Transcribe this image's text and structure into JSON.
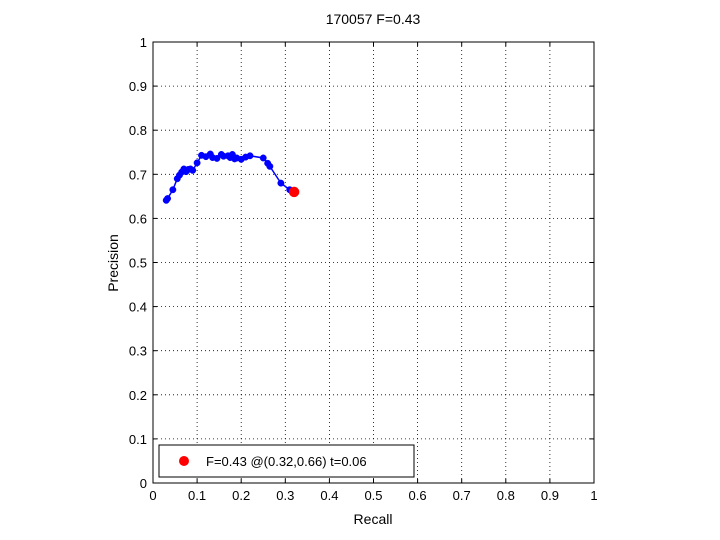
{
  "chart_data": {
    "type": "scatter",
    "title": "170057 F=0.43",
    "xlabel": "Recall",
    "ylabel": "Precision",
    "xlim": [
      0,
      1
    ],
    "ylim": [
      0,
      1
    ],
    "x_ticks": [
      "0",
      "0.1",
      "0.2",
      "0.3",
      "0.4",
      "0.5",
      "0.6",
      "0.7",
      "0.8",
      "0.9",
      "1"
    ],
    "y_ticks": [
      "0",
      "0.1",
      "0.2",
      "0.3",
      "0.4",
      "0.5",
      "0.6",
      "0.7",
      "0.8",
      "0.9",
      "1"
    ],
    "grid": true,
    "legend_position": "bottom-left",
    "series": [
      {
        "color": "#0000ff",
        "line": true,
        "marker": "dot",
        "x": [
          0.03,
          0.033,
          0.045,
          0.055,
          0.06,
          0.065,
          0.07,
          0.075,
          0.08,
          0.085,
          0.09,
          0.1,
          0.11,
          0.12,
          0.13,
          0.135,
          0.145,
          0.155,
          0.16,
          0.17,
          0.175,
          0.18,
          0.185,
          0.19,
          0.2,
          0.21,
          0.22,
          0.25,
          0.26,
          0.265,
          0.29,
          0.31
        ],
        "y": [
          0.641,
          0.645,
          0.665,
          0.69,
          0.698,
          0.705,
          0.712,
          0.706,
          0.711,
          0.712,
          0.709,
          0.726,
          0.743,
          0.74,
          0.746,
          0.738,
          0.736,
          0.745,
          0.741,
          0.742,
          0.738,
          0.745,
          0.735,
          0.737,
          0.734,
          0.739,
          0.742,
          0.737,
          0.725,
          0.718,
          0.68,
          0.665
        ]
      },
      {
        "color": "#ff0000",
        "line": false,
        "marker": "big-dot",
        "x": [
          0.32
        ],
        "y": [
          0.66
        ]
      }
    ],
    "legend": [
      {
        "label": "F=0.43 @(0.32,0.66) t=0.06",
        "color": "#ff0000"
      }
    ]
  }
}
